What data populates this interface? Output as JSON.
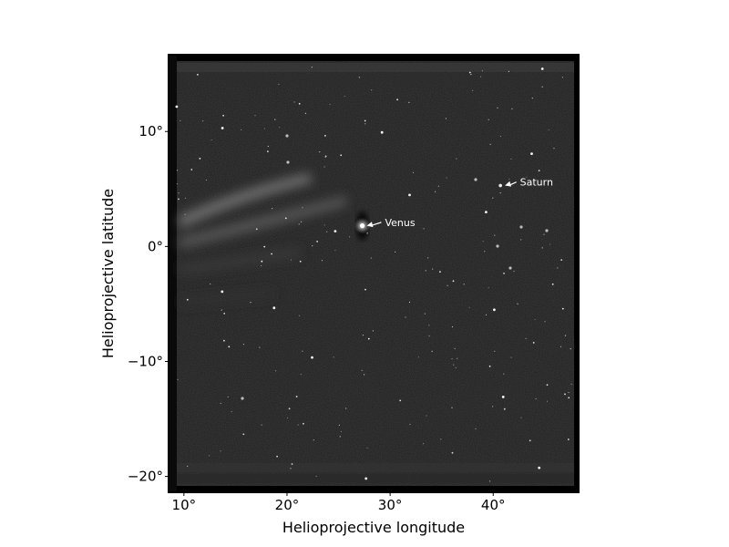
{
  "chart_data": {
    "type": "image",
    "title": "",
    "xlabel": "Helioprojective longitude",
    "ylabel": "Helioprojective latitude",
    "xlim": [
      8.6,
      48.2
    ],
    "ylim": [
      -21.3,
      16.6
    ],
    "x_ticks": [
      {
        "value": 10,
        "label": "10°"
      },
      {
        "value": 20,
        "label": "20°"
      },
      {
        "value": 30,
        "label": "30°"
      },
      {
        "value": 40,
        "label": "40°"
      }
    ],
    "y_ticks": [
      {
        "value": 10,
        "label": "10°"
      },
      {
        "value": 0,
        "label": "0°"
      },
      {
        "value": -10,
        "label": "−10°"
      },
      {
        "value": -20,
        "label": "−20°"
      }
    ],
    "colormap": "grayscale",
    "annotations": [
      {
        "label": "Venus",
        "x": 27.3,
        "y": 1.8,
        "text_x": 29.5,
        "text_y": 2.1
      },
      {
        "label": "Saturn",
        "x": 40.7,
        "y": 5.3,
        "text_x": 42.6,
        "text_y": 5.6
      }
    ],
    "grid": false
  }
}
